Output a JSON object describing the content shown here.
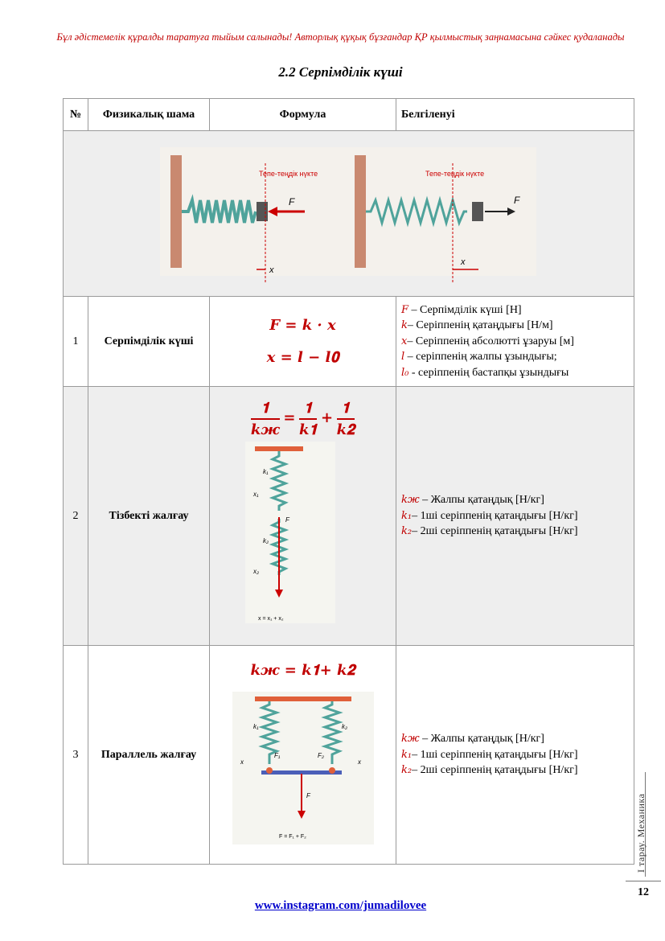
{
  "header": {
    "warning": "Бұл әдістемелік құралды таратуға тыйым салынады! Авторлық құқық бұзғандар ҚР қылмыстық заңнамасына сәйкес қудаланады",
    "title": "2.2 Серпімділік күші"
  },
  "table": {
    "columns": [
      "№",
      "Физикалық шама",
      "Формула",
      "Белгіленуі"
    ],
    "figure": {
      "label_equilibrium": "Тепе-теңдік нүкте",
      "label_force": "F",
      "label_x": "x"
    },
    "rows": [
      {
        "num": "1",
        "name": "Серпімділік күші",
        "formula_lines": [
          "𝑭 = 𝒌 · 𝒙",
          "𝒙 = 𝒍 − 𝒍𝟎"
        ],
        "desc": [
          {
            "sym": "F",
            "text": " – Серпімділік күші [Н]"
          },
          {
            "sym": "k",
            "text": "– Серіппенің қатаңдығы [Н/м]"
          },
          {
            "sym": "x",
            "text": "– Серіппенің абсолютті ұзаруы [м]"
          },
          {
            "sym": "l",
            "text": " – серіппенің жалпы ұзындығы;"
          },
          {
            "sym": "l₀",
            "text": " - серіппенің бастапқы ұзындығы"
          }
        ]
      },
      {
        "num": "2",
        "name": "Тізбекті жалғау",
        "formula": {
          "lhs_num": "𝟏",
          "lhs_den": "𝒌ж",
          "r1_num": "𝟏",
          "r1_den": "𝒌𝟏",
          "r2_num": "𝟏",
          "r2_den": "𝒌𝟐",
          "eq": "=",
          "plus": "+"
        },
        "figure": {
          "k1": "k₁",
          "k2": "k₂",
          "x1": "x₁",
          "x2": "x₂",
          "F": "F",
          "caption": "x = x₁ + x₂"
        },
        "desc": [
          {
            "sym": "kж",
            "text": " – Жалпы қатаңдық [Н/кг]"
          },
          {
            "sym": "k₁",
            "text": "– 1ші серіппенің қатаңдығы [Н/кг]"
          },
          {
            "sym": "k₂",
            "text": "– 2ші серіппенің қатаңдығы [Н/кг]"
          }
        ]
      },
      {
        "num": "3",
        "name": "Параллель жалғау",
        "formula_text": "𝒌ж = 𝒌𝟏+ 𝒌𝟐",
        "figure": {
          "k1": "k₁",
          "k2": "k₂",
          "F1": "F₁",
          "F2": "F₂",
          "x": "x",
          "F": "F",
          "caption": "F = F₁ + F₂"
        },
        "desc": [
          {
            "sym": "kж",
            "text": " – Жалпы қатаңдық [Н/кг]"
          },
          {
            "sym": "k₁",
            "text": "– 1ші серіппенің қатаңдығы [Н/кг]"
          },
          {
            "sym": "k₂",
            "text": "– 2ші серіппенің қатаңдығы [Н/кг]"
          }
        ]
      }
    ]
  },
  "side": {
    "chapter": "I тарау. Механика",
    "page": "12"
  },
  "footer": {
    "link": "www.instagram.com/jumadilovee"
  }
}
